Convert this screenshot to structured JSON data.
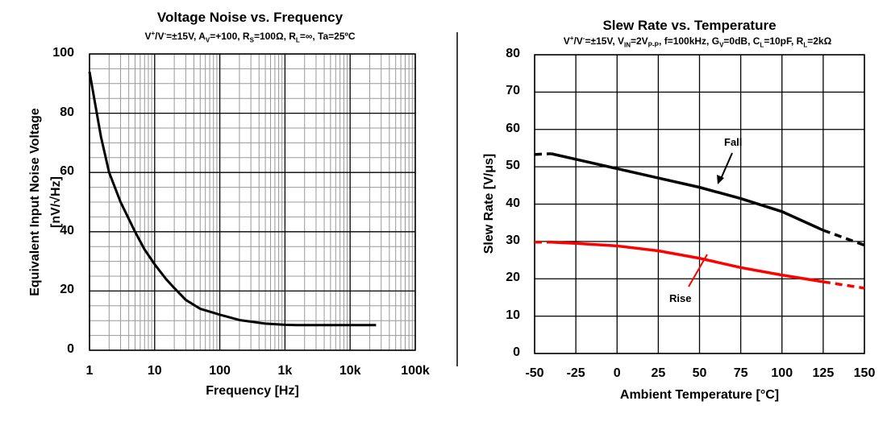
{
  "chart_data": [
    {
      "type": "line",
      "title": "Voltage Noise vs. Frequency",
      "subtitle": [
        {
          "t": "V"
        },
        {
          "t": "+",
          "sup": true
        },
        {
          "t": "/V"
        },
        {
          "t": "-",
          "sup": true
        },
        {
          "t": "=±15V, A"
        },
        {
          "t": "V",
          "sub": true
        },
        {
          "t": "=+100, R"
        },
        {
          "t": "S",
          "sub": true
        },
        {
          "t": "=100Ω, R"
        },
        {
          "t": "L",
          "sub": true
        },
        {
          "t": "=∞, Ta=25ºC"
        }
      ],
      "xlabel": "Frequency [Hz]",
      "ylabel": "Equivalent Input Noise Voltage",
      "ylabel2": "[nV/√Hz]",
      "xscale": "log",
      "xlim": [
        1,
        100000
      ],
      "ylim": [
        0,
        100
      ],
      "xticks": [
        {
          "v": 1,
          "label": "1"
        },
        {
          "v": 10,
          "label": "10"
        },
        {
          "v": 100,
          "label": "100"
        },
        {
          "v": 1000,
          "label": "1k"
        },
        {
          "v": 10000,
          "label": "10k"
        },
        {
          "v": 100000,
          "label": "100k"
        }
      ],
      "yticks": [
        {
          "v": 0,
          "label": "0"
        },
        {
          "v": 20,
          "label": "20"
        },
        {
          "v": 40,
          "label": "40"
        },
        {
          "v": 60,
          "label": "60"
        },
        {
          "v": 80,
          "label": "80"
        },
        {
          "v": 100,
          "label": "100"
        }
      ],
      "grid": true,
      "series": [
        {
          "color": "#000000",
          "x": [
            1,
            1.5,
            2,
            3,
            5,
            7,
            10,
            15,
            20,
            30,
            50,
            100,
            200,
            500,
            1000,
            1500,
            3000,
            10000,
            25000
          ],
          "y": [
            94,
            72,
            60,
            50,
            40,
            34,
            29,
            24,
            21,
            17,
            14,
            12,
            10.2,
            9,
            8.6,
            8.5,
            8.5,
            8.5,
            8.5
          ]
        }
      ]
    },
    {
      "type": "line",
      "title": "Slew Rate vs. Temperature",
      "subtitle": [
        {
          "t": "V"
        },
        {
          "t": "+",
          "sup": true
        },
        {
          "t": "/V"
        },
        {
          "t": "-",
          "sup": true
        },
        {
          "t": "=±15V, V"
        },
        {
          "t": "IN",
          "sub": true
        },
        {
          "t": "=2V"
        },
        {
          "t": "P-P",
          "sub": true
        },
        {
          "t": ", f=100kHz, G"
        },
        {
          "t": "V",
          "sub": true
        },
        {
          "t": "=0dB, C"
        },
        {
          "t": "L",
          "sub": true
        },
        {
          "t": "=10pF, R"
        },
        {
          "t": "L",
          "sub": true
        },
        {
          "t": "=2kΩ"
        }
      ],
      "xlabel": "Ambient Temperature [°C]",
      "ylabel": "Slew Rate [V/μs]",
      "xlim": [
        -50,
        150
      ],
      "ylim": [
        0,
        80
      ],
      "xticks": [
        {
          "v": -50,
          "label": "-50"
        },
        {
          "v": -25,
          "label": "-25"
        },
        {
          "v": 0,
          "label": "0"
        },
        {
          "v": 25,
          "label": "25"
        },
        {
          "v": 50,
          "label": "50"
        },
        {
          "v": 75,
          "label": "75"
        },
        {
          "v": 100,
          "label": "100"
        },
        {
          "v": 125,
          "label": "125"
        },
        {
          "v": 150,
          "label": "150"
        }
      ],
      "yticks": [
        {
          "v": 0,
          "label": "0"
        },
        {
          "v": 10,
          "label": "10"
        },
        {
          "v": 20,
          "label": "20"
        },
        {
          "v": 30,
          "label": "30"
        },
        {
          "v": 40,
          "label": "40"
        },
        {
          "v": 50,
          "label": "50"
        },
        {
          "v": 60,
          "label": "60"
        },
        {
          "v": 70,
          "label": "70"
        },
        {
          "v": 80,
          "label": "80"
        }
      ],
      "grid": true,
      "series": [
        {
          "name": "Fall",
          "color": "#000000",
          "x": [
            -50,
            -40,
            -25,
            0,
            25,
            50,
            75,
            100,
            125,
            150
          ],
          "y": [
            53.3,
            53.5,
            52,
            49.5,
            47,
            44.5,
            41.5,
            38,
            33,
            29
          ],
          "dashed_below": -40,
          "dashed_above": 125
        },
        {
          "name": "Rise",
          "color": "#ff0000",
          "x": [
            -50,
            -40,
            -25,
            0,
            25,
            50,
            75,
            100,
            125,
            150
          ],
          "y": [
            29.8,
            29.8,
            29.5,
            28.8,
            27.5,
            25.5,
            23,
            21,
            19.2,
            17.5
          ],
          "dashed_below": -40,
          "dashed_above": 125
        }
      ]
    }
  ]
}
